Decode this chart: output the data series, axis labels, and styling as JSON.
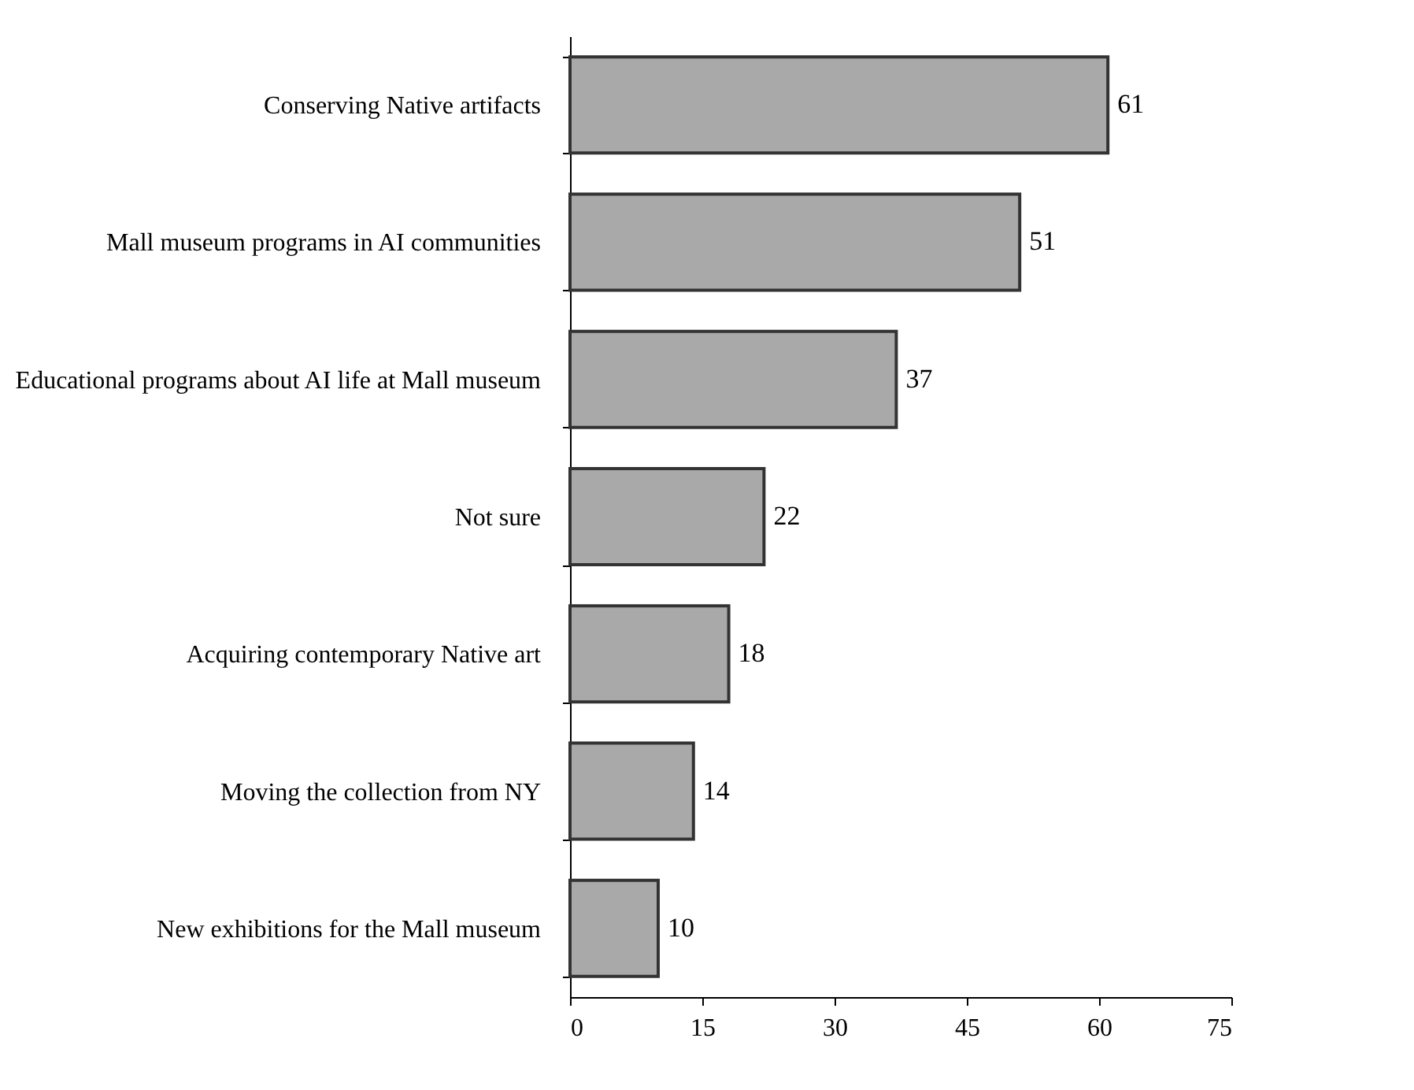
{
  "chart_data": {
    "type": "bar",
    "orientation": "horizontal",
    "categories": [
      "Conserving Native artifacts",
      "Mall museum programs in AI communities",
      "Educational programs about AI life at Mall museum",
      "Not sure",
      "Acquiring contemporary Native art",
      "Moving the collection from NY",
      "New exhibitions for the Mall museum"
    ],
    "values": [
      61,
      51,
      37,
      22,
      18,
      14,
      10
    ],
    "color": "#a9a9a9",
    "xlim": [
      0,
      75
    ],
    "xticks": [
      0,
      15,
      30,
      45,
      60,
      75
    ],
    "grid": false,
    "data_labels": true
  }
}
